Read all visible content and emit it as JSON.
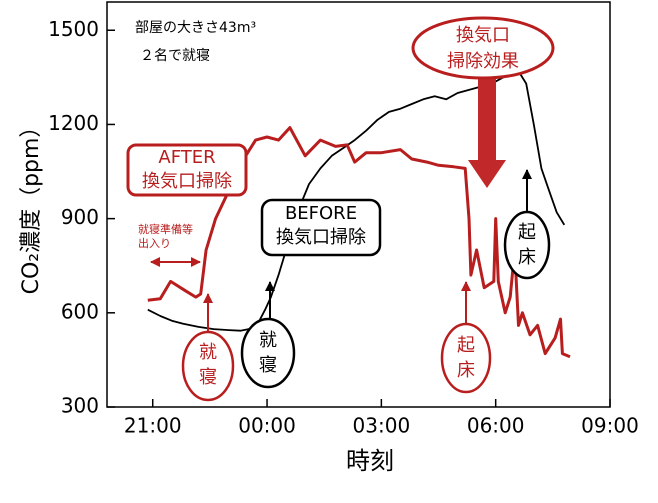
{
  "chart_data": {
    "type": "line",
    "x_label": "時刻",
    "y_label": "CO₂濃度（ppm）",
    "xlim": [
      19.8,
      33
    ],
    "ylim": [
      300,
      1590
    ],
    "xticks": [
      {
        "value": 21,
        "label": "21:00"
      },
      {
        "value": 24,
        "label": "00:00"
      },
      {
        "value": 27,
        "label": "03:00"
      },
      {
        "value": 30,
        "label": "06:00"
      },
      {
        "value": 33,
        "label": "09:00"
      }
    ],
    "yticks": [
      300,
      600,
      900,
      1200,
      1500
    ],
    "series": [
      {
        "color": "#000000",
        "x": [
          20.87,
          21.2,
          21.5,
          21.8,
          22.2,
          22.6,
          23.0,
          23.3,
          23.6,
          23.8,
          23.95,
          24.1,
          24.3,
          24.5,
          24.7,
          24.9,
          25.1,
          25.4,
          25.7,
          26.0,
          26.3,
          26.6,
          26.9,
          27.2,
          27.5,
          27.8,
          28.1,
          28.4,
          28.7,
          29.0,
          29.3,
          29.6,
          29.9,
          30.2,
          30.4,
          30.6,
          30.8,
          31.0,
          31.2,
          31.4,
          31.6,
          31.8
        ],
        "values": [
          610,
          590,
          575,
          565,
          555,
          548,
          545,
          543,
          550,
          575,
          610,
          650,
          720,
          800,
          880,
          950,
          1010,
          1060,
          1100,
          1125,
          1150,
          1180,
          1215,
          1240,
          1250,
          1265,
          1280,
          1290,
          1280,
          1300,
          1310,
          1320,
          1330,
          1350,
          1360,
          1370,
          1330,
          1200,
          1060,
          990,
          920,
          880
        ]
      },
      {
        "color": "#b81e1e",
        "x": [
          20.87,
          21.2,
          21.47,
          21.86,
          22.13,
          22.26,
          22.4,
          22.65,
          23.04,
          23.44,
          23.7,
          24.0,
          24.3,
          24.6,
          25.0,
          25.4,
          25.8,
          26.1,
          26.3,
          26.6,
          27.0,
          27.5,
          27.8,
          28.2,
          28.5,
          28.9,
          29.2,
          29.3,
          29.35,
          29.5,
          29.7,
          29.95,
          30.0,
          30.07,
          30.25,
          30.38,
          30.5,
          30.6,
          30.7,
          30.9,
          31.1,
          31.3,
          31.56,
          31.7,
          31.75,
          31.95
        ],
        "values": [
          640,
          645,
          700,
          670,
          650,
          660,
          800,
          900,
          1000,
          1100,
          1150,
          1160,
          1150,
          1190,
          1100,
          1150,
          1130,
          1135,
          1080,
          1110,
          1110,
          1120,
          1090,
          1080,
          1070,
          1065,
          1060,
          900,
          720,
          800,
          680,
          700,
          900,
          700,
          600,
          650,
          800,
          560,
          600,
          530,
          560,
          470,
          520,
          580,
          470,
          460
        ]
      }
    ],
    "annotations": [
      [
        "部屋の大きさ43m³"
      ],
      [
        "２名で就寝"
      ],
      [
        "換気口",
        "掃除効果"
      ],
      [
        "AFTER",
        "換気口掃除"
      ],
      [
        "BEFORE",
        "換気口掃除"
      ],
      [
        "就寝準備等",
        "出入り"
      ],
      [
        "就",
        "寝"
      ],
      [
        "就",
        "寝"
      ],
      [
        "起",
        "床"
      ],
      [
        "起",
        "床"
      ]
    ]
  }
}
